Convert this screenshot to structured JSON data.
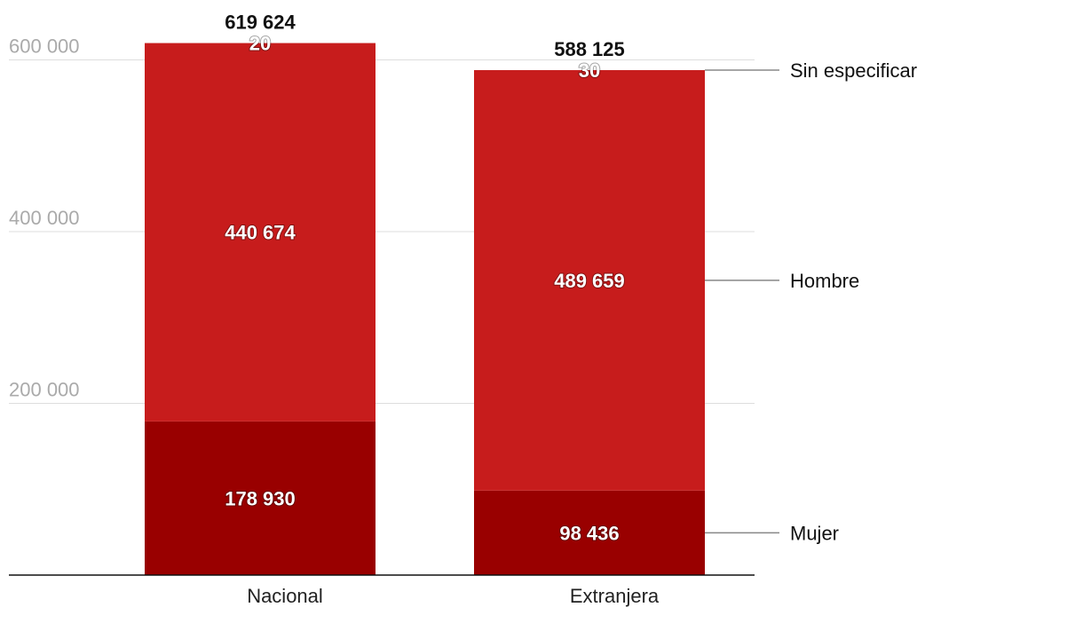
{
  "chart_data": {
    "type": "bar",
    "stacked": true,
    "categories": [
      "Nacional",
      "Extranjera"
    ],
    "series": [
      {
        "name": "Mujer",
        "values": [
          178930,
          98436
        ],
        "color": "#990000",
        "labels": [
          "178 930",
          "98 436"
        ]
      },
      {
        "name": "Hombre",
        "values": [
          440674,
          489659
        ],
        "color": "#c71c1c",
        "labels": [
          "440 674",
          "489 659"
        ]
      },
      {
        "name": "Sin especificar",
        "values": [
          20,
          30
        ],
        "color": "#c71c1c",
        "labels": [
          "20",
          "30"
        ]
      }
    ],
    "totals": [
      619624,
      588125
    ],
    "total_labels": [
      "619 624",
      "588 125"
    ],
    "yticks": [
      200000,
      400000,
      600000
    ],
    "ytick_labels": [
      "200 000",
      "400 000",
      "600 000"
    ],
    "ylim": [
      0,
      600000
    ],
    "grid": true,
    "legend_position": "right (direct labels)",
    "xlabel": "",
    "ylabel": "",
    "title": ""
  }
}
